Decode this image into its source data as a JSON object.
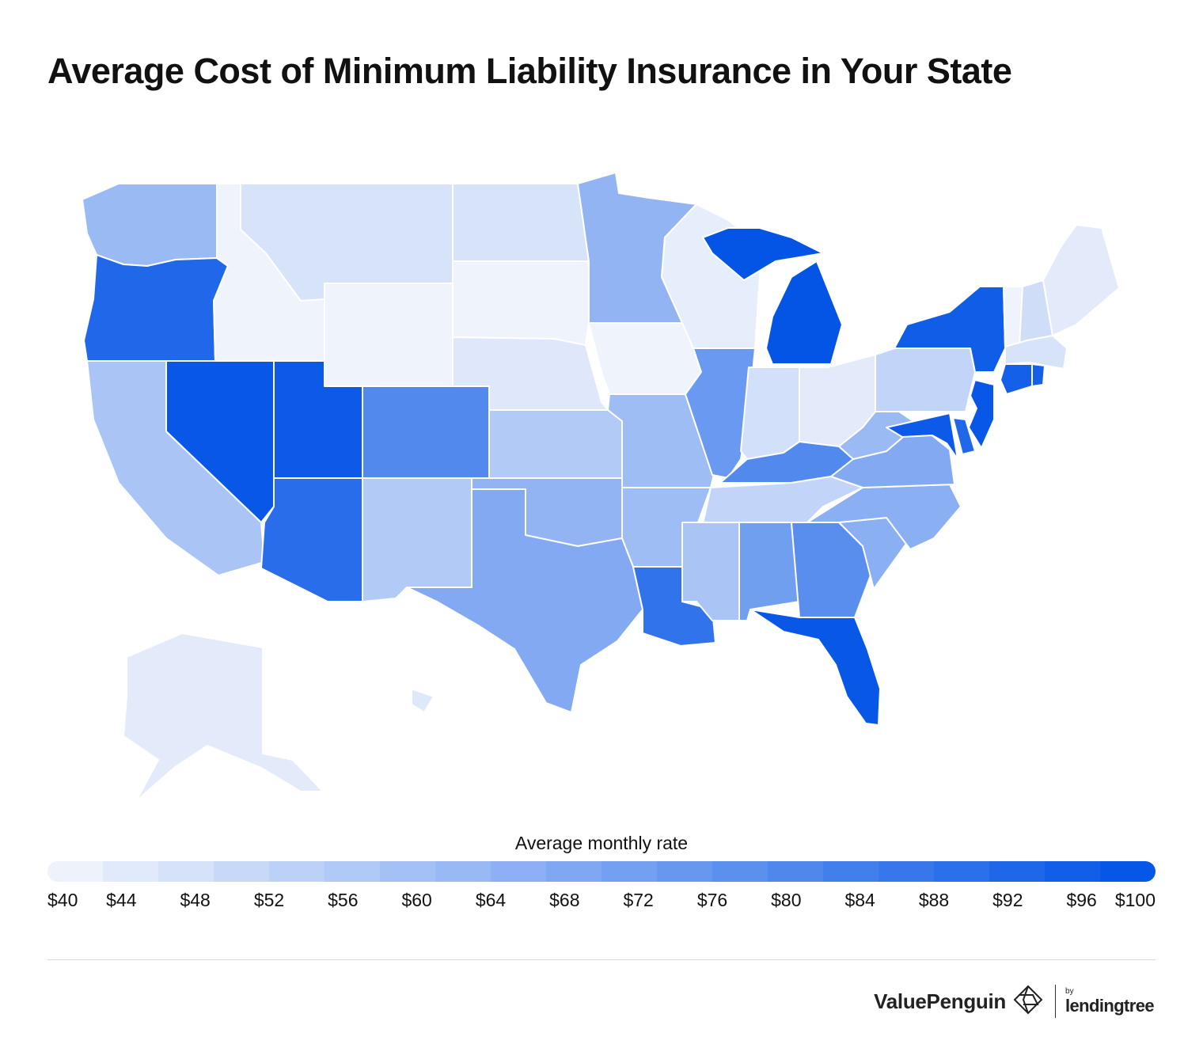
{
  "title": "Average Cost of Minimum Liability Insurance in Your State",
  "legend": {
    "title": "Average monthly rate",
    "min": 40,
    "max": 100,
    "color_low": "#f3f6fc",
    "color_high": "#0052e6",
    "ticks": [
      "$40",
      "$44",
      "$48",
      "$52",
      "$56",
      "$60",
      "$64",
      "$68",
      "$72",
      "$76",
      "$80",
      "$84",
      "$88",
      "$92",
      "$96",
      "$100"
    ]
  },
  "footer": {
    "brand": "ValuePenguin",
    "by": "by",
    "partner": "lendingtree"
  },
  "icons": {
    "brand_logo": "valuepenguin-logo-icon"
  },
  "map_data": {
    "metric": "Average monthly rate",
    "unit": "USD",
    "states": [
      {
        "code": "WA",
        "value": 62
      },
      {
        "code": "OR",
        "value": 92
      },
      {
        "code": "CA",
        "value": 58
      },
      {
        "code": "NV",
        "value": 98
      },
      {
        "code": "ID",
        "value": 41
      },
      {
        "code": "MT",
        "value": 47
      },
      {
        "code": "WY",
        "value": 41
      },
      {
        "code": "UT",
        "value": 97
      },
      {
        "code": "AZ",
        "value": 90
      },
      {
        "code": "CO",
        "value": 80
      },
      {
        "code": "NM",
        "value": 56
      },
      {
        "code": "ND",
        "value": 47
      },
      {
        "code": "SD",
        "value": 41
      },
      {
        "code": "NE",
        "value": 45
      },
      {
        "code": "KS",
        "value": 56
      },
      {
        "code": "OK",
        "value": 64
      },
      {
        "code": "TX",
        "value": 68
      },
      {
        "code": "MN",
        "value": 64
      },
      {
        "code": "IA",
        "value": 41
      },
      {
        "code": "MO",
        "value": 61
      },
      {
        "code": "AR",
        "value": 61
      },
      {
        "code": "LA",
        "value": 88
      },
      {
        "code": "WI",
        "value": 43
      },
      {
        "code": "IL",
        "value": 74
      },
      {
        "code": "MI",
        "value": 99
      },
      {
        "code": "IN",
        "value": 48
      },
      {
        "code": "OH",
        "value": 44
      },
      {
        "code": "KY",
        "value": 80
      },
      {
        "code": "TN",
        "value": 52
      },
      {
        "code": "MS",
        "value": 58
      },
      {
        "code": "AL",
        "value": 72
      },
      {
        "code": "GA",
        "value": 78
      },
      {
        "code": "FL",
        "value": 98
      },
      {
        "code": "SC",
        "value": 66
      },
      {
        "code": "NC",
        "value": 66
      },
      {
        "code": "VA",
        "value": 68
      },
      {
        "code": "WV",
        "value": 62
      },
      {
        "code": "PA",
        "value": 52
      },
      {
        "code": "NY",
        "value": 96
      },
      {
        "code": "VT",
        "value": 41
      },
      {
        "code": "NH",
        "value": 49
      },
      {
        "code": "ME",
        "value": 44
      },
      {
        "code": "MA",
        "value": 47
      },
      {
        "code": "RI",
        "value": 95
      },
      {
        "code": "CT",
        "value": 95
      },
      {
        "code": "NJ",
        "value": 98
      },
      {
        "code": "DE",
        "value": 92
      },
      {
        "code": "MD",
        "value": 97
      },
      {
        "code": "AK",
        "value": 44
      },
      {
        "code": "HI",
        "value": 45
      }
    ]
  }
}
